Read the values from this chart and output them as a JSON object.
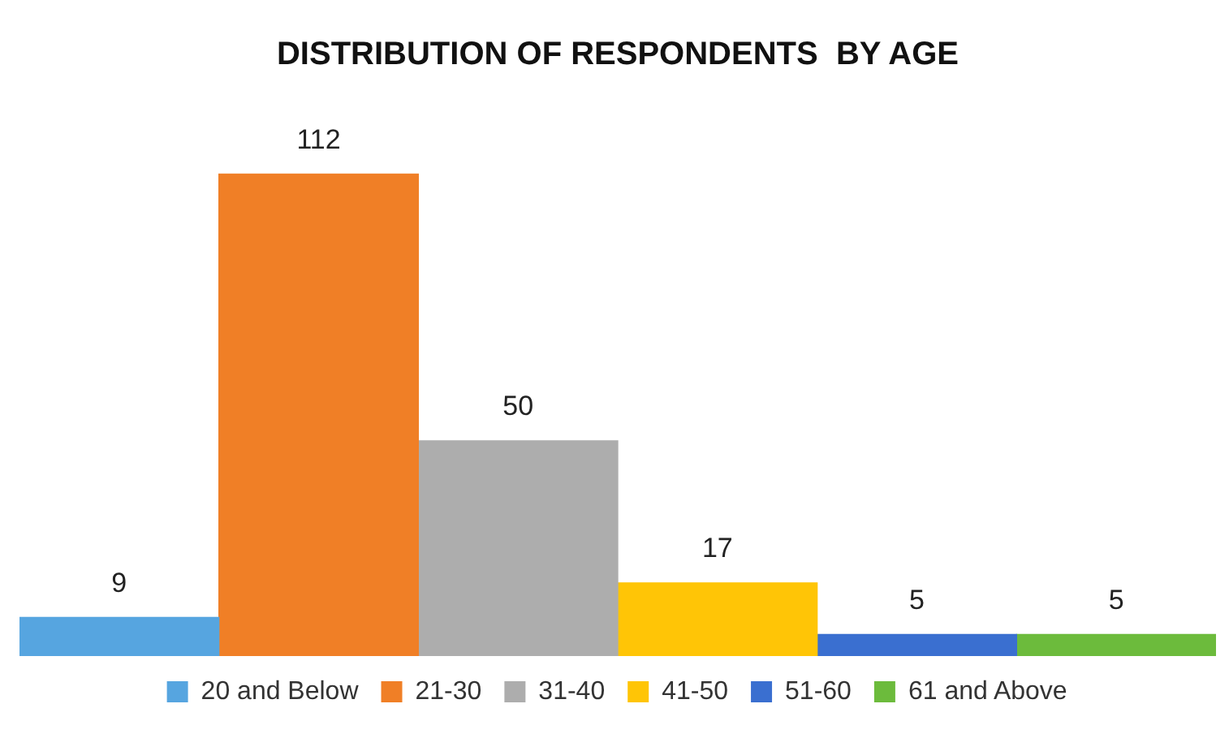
{
  "chart_data": {
    "type": "bar",
    "title": "DISTRIBUTION OF RESPONDENTS  BY AGE",
    "categories": [
      null,
      null,
      null,
      null,
      null,
      null
    ],
    "series": [
      {
        "name": "20 and Below",
        "color": "#56a5e0",
        "values": [
          9,
          null,
          null,
          null,
          null,
          null
        ]
      },
      {
        "name": "21-30",
        "color": "#f07f26",
        "values": [
          null,
          112,
          null,
          null,
          null,
          null
        ]
      },
      {
        "name": "31-40",
        "color": "#adadad",
        "values": [
          null,
          null,
          50,
          null,
          null,
          null
        ]
      },
      {
        "name": "41-50",
        "color": "#ffc506",
        "values": [
          null,
          null,
          null,
          17,
          null,
          null
        ]
      },
      {
        "name": "51-60",
        "color": "#3a6fd0",
        "values": [
          null,
          null,
          null,
          null,
          5,
          null
        ]
      },
      {
        "name": "61 and Above",
        "color": "#6cbb3c",
        "values": [
          null,
          null,
          null,
          null,
          null,
          5
        ]
      }
    ],
    "stacked": true,
    "data_labels": true,
    "legend": "bottom",
    "grid": false
  }
}
